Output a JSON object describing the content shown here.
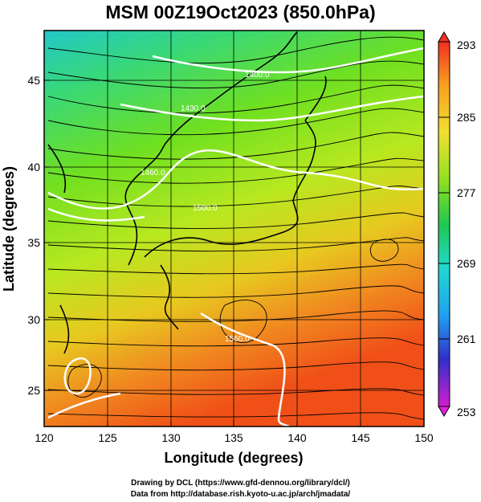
{
  "title": "MSM 00Z19Oct2023 (850.0hPa)",
  "x_axis": {
    "label": "Longitude (degrees)",
    "ticks": [
      "120",
      "125",
      "130",
      "135",
      "140",
      "145",
      "150"
    ]
  },
  "y_axis": {
    "label": "Latitude  (degrees)",
    "ticks": [
      "25",
      "30",
      "35",
      "40",
      "45"
    ]
  },
  "colorbar": {
    "ticks": [
      "293",
      "285",
      "277",
      "269",
      "261",
      "253"
    ]
  },
  "contour_labels": [
    "1400.0",
    "1430.0",
    "1460.0",
    "1500.0",
    "1560.0"
  ],
  "footer": {
    "line1": "Drawing by DCL (https://www.gfd-dennou.org/library/dcl/)",
    "line2": "Data from http://database.rish.kyoto-u.ac.jp/arch/jmadata/"
  },
  "colors": {
    "contour": "#ffffff",
    "streamline": "#000000",
    "coast": "#000000"
  }
}
